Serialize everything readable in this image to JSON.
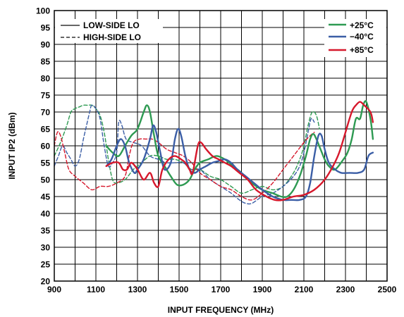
{
  "chart_data": {
    "type": "line",
    "xlabel": "INPUT FREQUENCY (MHz)",
    "ylabel": "INPUT IP2 (dBm)",
    "xlim": [
      900,
      2500
    ],
    "ylim": [
      20,
      100
    ],
    "x_ticks": [
      "900",
      "1100",
      "1300",
      "1500",
      "1700",
      "1900",
      "2100",
      "2300",
      "2500"
    ],
    "y_ticks": [
      "20",
      "25",
      "30",
      "35",
      "40",
      "45",
      "50",
      "55",
      "60",
      "65",
      "70",
      "75",
      "80",
      "85",
      "90",
      "95",
      "100"
    ],
    "grid": true,
    "legend_style": {
      "position": "top-left",
      "entries": [
        {
          "label": "LOW-SIDE LO",
          "dash": "solid"
        },
        {
          "label": "HIGH-SIDE LO",
          "dash": "dashed"
        }
      ]
    },
    "legend_temp": {
      "position": "top-right",
      "entries": [
        {
          "label": "+25°C",
          "color": "#2e9a52"
        },
        {
          "label": "−40°C",
          "color": "#3b5ea6"
        },
        {
          "label": "+85°C",
          "color": "#d6182c"
        }
      ]
    },
    "series": [
      {
        "name": "+25°C",
        "lo": "LOW-SIDE LO",
        "color": "#2e9a52",
        "dash": "solid",
        "points": [
          [
            1150,
            60
          ],
          [
            1180,
            58
          ],
          [
            1210,
            57
          ],
          [
            1240,
            60
          ],
          [
            1270,
            63
          ],
          [
            1300,
            65
          ],
          [
            1330,
            70
          ],
          [
            1345,
            72
          ],
          [
            1360,
            70
          ],
          [
            1380,
            63
          ],
          [
            1400,
            57
          ],
          [
            1430,
            54
          ],
          [
            1460,
            51
          ],
          [
            1490,
            48.5
          ],
          [
            1520,
            48.5
          ],
          [
            1550,
            50
          ],
          [
            1575,
            53
          ],
          [
            1600,
            55
          ],
          [
            1640,
            56
          ],
          [
            1680,
            57
          ],
          [
            1720,
            56
          ],
          [
            1760,
            54
          ],
          [
            1800,
            52
          ],
          [
            1850,
            49
          ],
          [
            1900,
            47
          ],
          [
            1950,
            46
          ],
          [
            1990,
            45
          ],
          [
            2020,
            45
          ],
          [
            2050,
            47
          ],
          [
            2080,
            51
          ],
          [
            2110,
            57
          ],
          [
            2130,
            62
          ],
          [
            2145,
            63.5
          ],
          [
            2160,
            62
          ],
          [
            2180,
            59
          ],
          [
            2200,
            56
          ],
          [
            2220,
            54
          ],
          [
            2250,
            53
          ],
          [
            2290,
            56
          ],
          [
            2310,
            58
          ],
          [
            2330,
            62
          ],
          [
            2350,
            68
          ],
          [
            2370,
            68
          ],
          [
            2385,
            72
          ],
          [
            2400,
            73
          ],
          [
            2420,
            68
          ],
          [
            2432,
            62
          ]
        ]
      },
      {
        "name": "−40°C",
        "lo": "LOW-SIDE LO",
        "color": "#3b5ea6",
        "dash": "solid",
        "points": [
          [
            1150,
            54
          ],
          [
            1175,
            56
          ],
          [
            1200,
            60
          ],
          [
            1220,
            62
          ],
          [
            1240,
            60
          ],
          [
            1260,
            55
          ],
          [
            1285,
            52
          ],
          [
            1300,
            53
          ],
          [
            1330,
            56
          ],
          [
            1360,
            62
          ],
          [
            1375,
            66
          ],
          [
            1390,
            64
          ],
          [
            1410,
            58
          ],
          [
            1430,
            53
          ],
          [
            1460,
            55
          ],
          [
            1480,
            62
          ],
          [
            1495,
            65
          ],
          [
            1510,
            63
          ],
          [
            1530,
            57
          ],
          [
            1550,
            53
          ],
          [
            1575,
            52
          ],
          [
            1600,
            53
          ],
          [
            1630,
            54
          ],
          [
            1660,
            55
          ],
          [
            1690,
            55.5
          ],
          [
            1720,
            56
          ],
          [
            1750,
            55
          ],
          [
            1780,
            53
          ],
          [
            1820,
            51
          ],
          [
            1860,
            49
          ],
          [
            1900,
            47
          ],
          [
            1950,
            45
          ],
          [
            2000,
            44
          ],
          [
            2040,
            44
          ],
          [
            2080,
            44
          ],
          [
            2110,
            45
          ],
          [
            2130,
            49
          ],
          [
            2150,
            57
          ],
          [
            2170,
            63
          ],
          [
            2185,
            63
          ],
          [
            2200,
            59
          ],
          [
            2220,
            55
          ],
          [
            2250,
            53
          ],
          [
            2280,
            52
          ],
          [
            2320,
            52
          ],
          [
            2360,
            52
          ],
          [
            2390,
            53
          ],
          [
            2410,
            57
          ],
          [
            2432,
            58
          ]
        ]
      },
      {
        "name": "+85°C",
        "lo": "LOW-SIDE LO",
        "color": "#d6182c",
        "dash": "solid",
        "points": [
          [
            1150,
            54
          ],
          [
            1180,
            55
          ],
          [
            1210,
            55
          ],
          [
            1230,
            53
          ],
          [
            1250,
            53
          ],
          [
            1270,
            55
          ],
          [
            1300,
            53
          ],
          [
            1330,
            50
          ],
          [
            1360,
            52
          ],
          [
            1380,
            49
          ],
          [
            1400,
            48
          ],
          [
            1420,
            53
          ],
          [
            1450,
            56
          ],
          [
            1480,
            57
          ],
          [
            1510,
            56
          ],
          [
            1530,
            55
          ],
          [
            1550,
            53
          ],
          [
            1565,
            52
          ],
          [
            1590,
            60
          ],
          [
            1605,
            61
          ],
          [
            1630,
            59
          ],
          [
            1660,
            57
          ],
          [
            1690,
            56
          ],
          [
            1720,
            55
          ],
          [
            1750,
            54
          ],
          [
            1790,
            52
          ],
          [
            1830,
            50
          ],
          [
            1870,
            47
          ],
          [
            1920,
            45
          ],
          [
            1960,
            44
          ],
          [
            2000,
            44
          ],
          [
            2050,
            45
          ],
          [
            2100,
            45.5
          ],
          [
            2150,
            47
          ],
          [
            2200,
            50
          ],
          [
            2240,
            54
          ],
          [
            2270,
            58
          ],
          [
            2300,
            64
          ],
          [
            2330,
            70
          ],
          [
            2350,
            72
          ],
          [
            2370,
            73
          ],
          [
            2390,
            72
          ],
          [
            2420,
            70
          ],
          [
            2432,
            67
          ]
        ]
      },
      {
        "name": "+25°C",
        "lo": "HIGH-SIDE LO",
        "color": "#2e9a52",
        "dash": "dashed",
        "points": [
          [
            900,
            57
          ],
          [
            930,
            61
          ],
          [
            960,
            66
          ],
          [
            980,
            70
          ],
          [
            1000,
            71
          ],
          [
            1020,
            71.5
          ],
          [
            1040,
            72
          ],
          [
            1060,
            72
          ],
          [
            1080,
            72
          ],
          [
            1100,
            71
          ],
          [
            1120,
            69
          ],
          [
            1140,
            64
          ],
          [
            1160,
            56
          ],
          [
            1180,
            50
          ],
          [
            1200,
            49
          ],
          [
            1240,
            50
          ],
          [
            1280,
            53
          ],
          [
            1320,
            55
          ],
          [
            1360,
            57
          ],
          [
            1400,
            57
          ],
          [
            1440,
            56
          ],
          [
            1480,
            56
          ],
          [
            1520,
            55
          ],
          [
            1560,
            53
          ],
          [
            1600,
            53
          ],
          [
            1650,
            51
          ],
          [
            1700,
            50
          ],
          [
            1750,
            48
          ],
          [
            1800,
            46
          ],
          [
            1850,
            47
          ],
          [
            1900,
            48
          ],
          [
            1950,
            47
          ],
          [
            2000,
            48
          ],
          [
            2050,
            52
          ],
          [
            2080,
            56
          ],
          [
            2100,
            60
          ],
          [
            2120,
            66
          ],
          [
            2140,
            70
          ],
          [
            2160,
            69
          ],
          [
            2175,
            65
          ]
        ]
      },
      {
        "name": "−40°C",
        "lo": "HIGH-SIDE LO",
        "color": "#3b5ea6",
        "dash": "dashed",
        "points": [
          [
            900,
            54
          ],
          [
            920,
            57
          ],
          [
            940,
            60
          ],
          [
            960,
            58
          ],
          [
            980,
            56
          ],
          [
            1000,
            54
          ],
          [
            1020,
            56
          ],
          [
            1040,
            62
          ],
          [
            1055,
            66
          ],
          [
            1070,
            70
          ],
          [
            1080,
            72
          ],
          [
            1100,
            71
          ],
          [
            1120,
            68
          ],
          [
            1140,
            60
          ],
          [
            1160,
            54
          ],
          [
            1180,
            55
          ],
          [
            1200,
            58
          ],
          [
            1210,
            67
          ],
          [
            1225,
            66
          ],
          [
            1245,
            62
          ],
          [
            1280,
            61
          ],
          [
            1320,
            60
          ],
          [
            1360,
            57
          ],
          [
            1400,
            56
          ],
          [
            1440,
            55
          ],
          [
            1480,
            55
          ],
          [
            1520,
            55
          ],
          [
            1560,
            53
          ],
          [
            1600,
            53
          ],
          [
            1650,
            50
          ],
          [
            1700,
            48
          ],
          [
            1750,
            46
          ],
          [
            1790,
            44
          ],
          [
            1820,
            43
          ],
          [
            1850,
            43
          ],
          [
            1900,
            45
          ],
          [
            1950,
            46
          ],
          [
            2000,
            48
          ],
          [
            2050,
            51
          ],
          [
            2080,
            54
          ],
          [
            2100,
            58
          ],
          [
            2120,
            64
          ],
          [
            2135,
            68
          ],
          [
            2150,
            67
          ]
        ]
      },
      {
        "name": "+85°C",
        "lo": "HIGH-SIDE LO",
        "color": "#d6182c",
        "dash": "dashed",
        "points": [
          [
            900,
            60
          ],
          [
            915,
            64
          ],
          [
            930,
            63
          ],
          [
            950,
            58
          ],
          [
            970,
            53
          ],
          [
            1000,
            51
          ],
          [
            1040,
            49
          ],
          [
            1080,
            47
          ],
          [
            1120,
            48
          ],
          [
            1160,
            48
          ],
          [
            1200,
            49
          ],
          [
            1240,
            51
          ],
          [
            1260,
            57
          ],
          [
            1280,
            61
          ],
          [
            1310,
            62
          ],
          [
            1340,
            62
          ],
          [
            1370,
            62
          ],
          [
            1400,
            61
          ],
          [
            1440,
            59
          ],
          [
            1480,
            58
          ],
          [
            1520,
            57
          ],
          [
            1560,
            55
          ],
          [
            1600,
            52
          ],
          [
            1650,
            50
          ],
          [
            1700,
            48
          ],
          [
            1750,
            47
          ],
          [
            1800,
            45
          ],
          [
            1850,
            44
          ],
          [
            1900,
            46
          ],
          [
            1950,
            49
          ],
          [
            2000,
            53
          ],
          [
            2050,
            57
          ],
          [
            2100,
            61
          ],
          [
            2130,
            63
          ],
          [
            2150,
            64
          ]
        ]
      }
    ]
  }
}
